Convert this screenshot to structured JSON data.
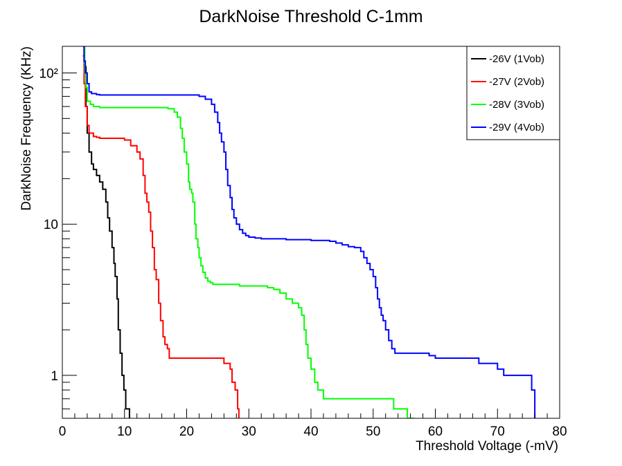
{
  "chart_data": {
    "type": "line",
    "title": "DarkNoise Threshold C-1mm",
    "xlabel": "Threshold Voltage (-mV)",
    "ylabel": "DarkNoise Frequency (KHz)",
    "xlim": [
      0,
      80
    ],
    "ylim": [
      0.52,
      150
    ],
    "yscale": "log",
    "grid": false,
    "legend_position": "top-right",
    "x_ticks": [
      {
        "value": 0,
        "label": "0"
      },
      {
        "value": 10,
        "label": "10"
      },
      {
        "value": 20,
        "label": "20"
      },
      {
        "value": 30,
        "label": "30"
      },
      {
        "value": 40,
        "label": "40"
      },
      {
        "value": 50,
        "label": "50"
      },
      {
        "value": 60,
        "label": "60"
      },
      {
        "value": 70,
        "label": "70"
      },
      {
        "value": 80,
        "label": "80"
      }
    ],
    "y_ticks": [
      {
        "value": 1,
        "label": "1"
      },
      {
        "value": 10,
        "label": "10"
      },
      {
        "value": 100,
        "label": "10²"
      }
    ],
    "series": [
      {
        "name": "-26V (1Vob)",
        "color": "#000000",
        "points": [
          [
            3.3,
            150
          ],
          [
            3.5,
            110
          ],
          [
            3.8,
            60
          ],
          [
            4.0,
            40
          ],
          [
            4.3,
            30
          ],
          [
            4.7,
            25
          ],
          [
            5.0,
            23
          ],
          [
            5.5,
            21
          ],
          [
            6.0,
            19
          ],
          [
            6.5,
            17
          ],
          [
            7.0,
            14
          ],
          [
            7.3,
            11
          ],
          [
            7.6,
            9
          ],
          [
            8.0,
            7
          ],
          [
            8.3,
            5.5
          ],
          [
            8.5,
            4.5
          ],
          [
            8.8,
            3.2
          ],
          [
            9.0,
            2.0
          ],
          [
            9.3,
            1.4
          ],
          [
            9.6,
            1.0
          ],
          [
            9.9,
            0.8
          ],
          [
            10.2,
            0.6
          ],
          [
            10.8,
            0.52
          ]
        ]
      },
      {
        "name": "-27V (2Vob)",
        "color": "#ff0000",
        "points": [
          [
            3.3,
            130
          ],
          [
            3.5,
            85
          ],
          [
            3.7,
            60
          ],
          [
            4.0,
            45
          ],
          [
            4.3,
            40
          ],
          [
            5.0,
            38
          ],
          [
            5.5,
            37.5
          ],
          [
            6.0,
            37
          ],
          [
            9.0,
            37
          ],
          [
            10.0,
            36
          ],
          [
            11.0,
            33
          ],
          [
            12.0,
            30
          ],
          [
            12.5,
            27
          ],
          [
            13.0,
            21
          ],
          [
            13.3,
            16
          ],
          [
            13.6,
            14
          ],
          [
            13.9,
            12
          ],
          [
            14.2,
            9
          ],
          [
            14.5,
            7
          ],
          [
            14.8,
            5
          ],
          [
            15.1,
            4.3
          ],
          [
            15.5,
            3.0
          ],
          [
            15.8,
            2.3
          ],
          [
            16.2,
            1.8
          ],
          [
            16.5,
            1.6
          ],
          [
            16.9,
            1.5
          ],
          [
            17.2,
            1.3
          ],
          [
            25.0,
            1.3
          ],
          [
            26.0,
            1.2
          ],
          [
            27.0,
            1.1
          ],
          [
            27.3,
            0.9
          ],
          [
            27.8,
            0.8
          ],
          [
            28.2,
            0.6
          ],
          [
            28.4,
            0.52
          ]
        ]
      },
      {
        "name": "-28V (3Vob)",
        "color": "#00ff00",
        "points": [
          [
            3.3,
            150
          ],
          [
            3.6,
            100
          ],
          [
            3.8,
            80
          ],
          [
            4.0,
            65
          ],
          [
            4.5,
            62
          ],
          [
            5.0,
            60
          ],
          [
            6.0,
            59
          ],
          [
            15.0,
            59
          ],
          [
            17.0,
            58
          ],
          [
            18.0,
            55
          ],
          [
            18.5,
            51
          ],
          [
            19.0,
            43
          ],
          [
            19.3,
            37
          ],
          [
            19.6,
            30
          ],
          [
            20.0,
            25
          ],
          [
            20.3,
            19
          ],
          [
            20.5,
            17
          ],
          [
            20.8,
            16
          ],
          [
            21.0,
            14
          ],
          [
            21.3,
            10
          ],
          [
            21.5,
            8
          ],
          [
            21.8,
            7
          ],
          [
            22.0,
            6
          ],
          [
            22.3,
            5.3
          ],
          [
            22.6,
            4.8
          ],
          [
            23.0,
            4.4
          ],
          [
            23.4,
            4.2
          ],
          [
            23.8,
            4.1
          ],
          [
            24.2,
            4.0
          ],
          [
            28.0,
            4.0
          ],
          [
            28.5,
            3.9
          ],
          [
            32.0,
            3.9
          ],
          [
            33.0,
            3.8
          ],
          [
            34.0,
            3.7
          ],
          [
            35.0,
            3.5
          ],
          [
            36.0,
            3.2
          ],
          [
            37.0,
            3.0
          ],
          [
            38.0,
            2.8
          ],
          [
            38.5,
            2.5
          ],
          [
            38.9,
            2.0
          ],
          [
            39.2,
            1.6
          ],
          [
            39.5,
            1.3
          ],
          [
            40.0,
            1.1
          ],
          [
            40.6,
            0.9
          ],
          [
            41.1,
            0.8
          ],
          [
            42.0,
            0.7
          ],
          [
            53.0,
            0.7
          ],
          [
            53.3,
            0.6
          ],
          [
            55.0,
            0.6
          ],
          [
            55.5,
            0.52
          ],
          [
            56.5,
            0.52
          ]
        ]
      },
      {
        "name": "-29V (4Vob)",
        "color": "#0000ff",
        "points": [
          [
            3.3,
            150
          ],
          [
            3.5,
            120
          ],
          [
            3.7,
            100
          ],
          [
            4.0,
            85
          ],
          [
            4.3,
            75
          ],
          [
            4.7,
            73
          ],
          [
            5.5,
            72
          ],
          [
            6.0,
            71.5
          ],
          [
            21.0,
            71.5
          ],
          [
            22.0,
            70
          ],
          [
            23.0,
            67
          ],
          [
            24.0,
            62
          ],
          [
            24.5,
            55
          ],
          [
            25.0,
            47
          ],
          [
            25.3,
            40
          ],
          [
            25.6,
            35
          ],
          [
            26.0,
            30
          ],
          [
            26.3,
            23
          ],
          [
            26.6,
            18
          ],
          [
            27.0,
            15
          ],
          [
            27.3,
            12.5
          ],
          [
            27.6,
            11
          ],
          [
            28.0,
            10
          ],
          [
            28.5,
            9.2
          ],
          [
            29.0,
            8.7
          ],
          [
            29.5,
            8.4
          ],
          [
            30.0,
            8.2
          ],
          [
            31.0,
            8.1
          ],
          [
            32.0,
            8.0
          ],
          [
            33.0,
            8.0
          ],
          [
            36.0,
            7.9
          ],
          [
            40.0,
            7.8
          ],
          [
            43.0,
            7.7
          ],
          [
            44.0,
            7.5
          ],
          [
            45.0,
            7.3
          ],
          [
            46.0,
            7.1
          ],
          [
            47.0,
            7.0
          ],
          [
            48.0,
            6.6
          ],
          [
            48.5,
            6.0
          ],
          [
            49.0,
            5.5
          ],
          [
            49.5,
            5.0
          ],
          [
            50.0,
            4.5
          ],
          [
            50.4,
            3.8
          ],
          [
            50.7,
            3.2
          ],
          [
            51.0,
            2.8
          ],
          [
            51.3,
            2.5
          ],
          [
            51.6,
            2.3
          ],
          [
            52.0,
            2.0
          ],
          [
            52.5,
            1.7
          ],
          [
            53.0,
            1.5
          ],
          [
            53.5,
            1.4
          ],
          [
            58.0,
            1.4
          ],
          [
            59.0,
            1.35
          ],
          [
            60.0,
            1.3
          ],
          [
            64.0,
            1.3
          ],
          [
            67.0,
            1.2
          ],
          [
            70.0,
            1.1
          ],
          [
            71.0,
            1.0
          ],
          [
            73.0,
            1.0
          ],
          [
            75.0,
            1.0
          ],
          [
            75.5,
            0.8
          ],
          [
            76.0,
            0.52
          ]
        ]
      }
    ]
  }
}
